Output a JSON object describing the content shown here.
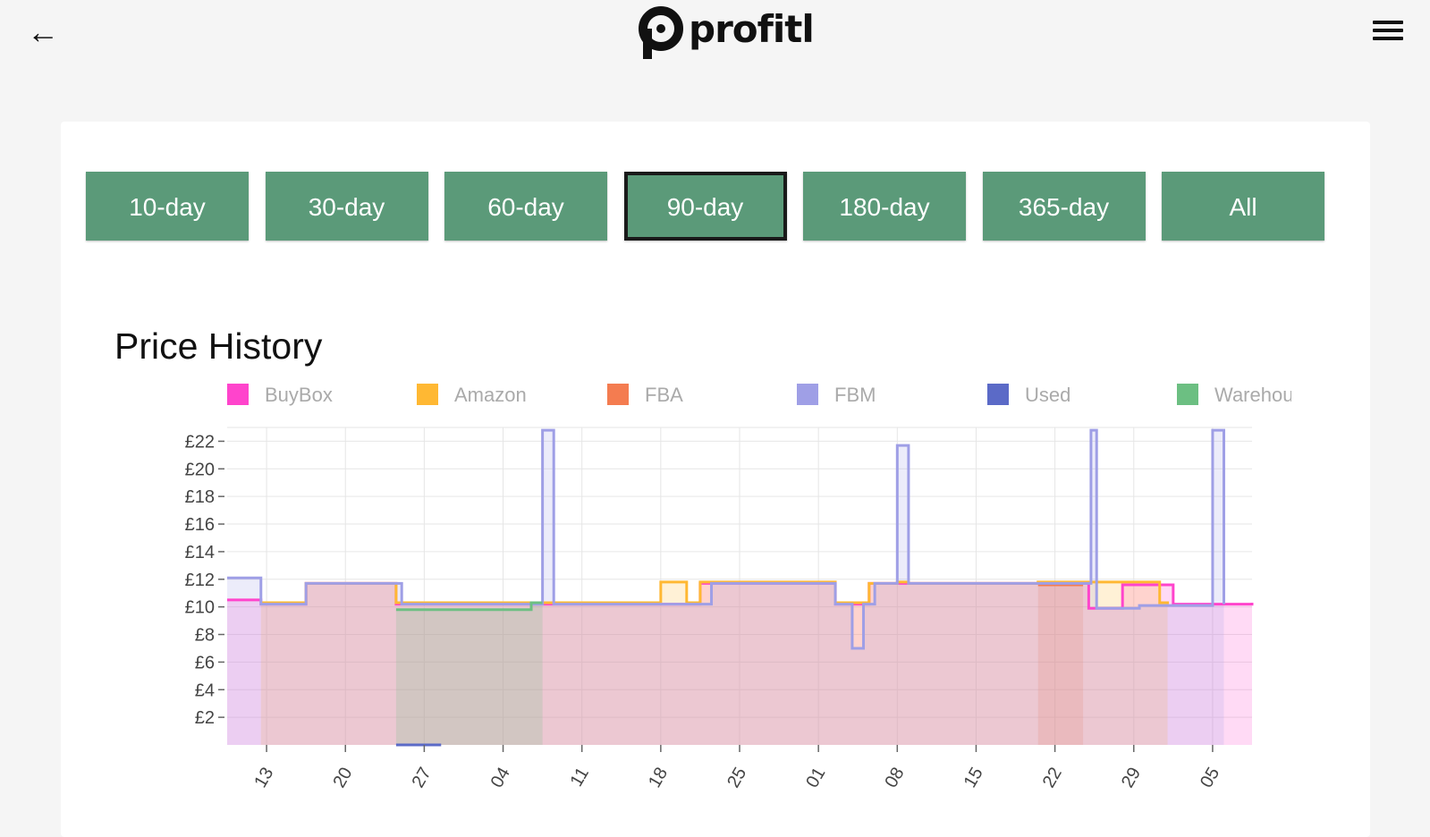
{
  "header": {
    "back_icon": "arrow-left-icon",
    "brand_name": "profitl",
    "menu_icon": "hamburger-menu-icon"
  },
  "range_buttons": [
    {
      "label": "10-day",
      "active": false
    },
    {
      "label": "30-day",
      "active": false
    },
    {
      "label": "60-day",
      "active": false
    },
    {
      "label": "90-day",
      "active": true
    },
    {
      "label": "180-day",
      "active": false
    },
    {
      "label": "365-day",
      "active": false
    },
    {
      "label": "All",
      "active": false
    }
  ],
  "chart_data": {
    "type": "line",
    "title": "Price History",
    "legend_position": "top",
    "grid": true,
    "ylim": [
      0,
      23
    ],
    "xlim": [
      0,
      91
    ],
    "y_ticks": [
      {
        "value": 2,
        "label": "£2"
      },
      {
        "value": 4,
        "label": "£4"
      },
      {
        "value": 6,
        "label": "£6"
      },
      {
        "value": 8,
        "label": "£8"
      },
      {
        "value": 10,
        "label": "£10"
      },
      {
        "value": 12,
        "label": "£12"
      },
      {
        "value": 14,
        "label": "£14"
      },
      {
        "value": 16,
        "label": "£16"
      },
      {
        "value": 18,
        "label": "£18"
      },
      {
        "value": 20,
        "label": "£20"
      },
      {
        "value": 22,
        "label": "£22"
      }
    ],
    "x_ticks": [
      {
        "value": 3.5,
        "label": "13"
      },
      {
        "value": 10.5,
        "label": "20"
      },
      {
        "value": 17.5,
        "label": "27"
      },
      {
        "value": 24.5,
        "label": "04"
      },
      {
        "value": 31.5,
        "label": "11"
      },
      {
        "value": 38.5,
        "label": "18"
      },
      {
        "value": 45.5,
        "label": "25"
      },
      {
        "value": 52.5,
        "label": "01"
      },
      {
        "value": 59.5,
        "label": "08"
      },
      {
        "value": 66.5,
        "label": "15"
      },
      {
        "value": 73.5,
        "label": "22"
      },
      {
        "value": 80.5,
        "label": "29"
      },
      {
        "value": 87.5,
        "label": "05"
      }
    ],
    "series": [
      {
        "name": "BuyBox",
        "color": "#ff44cc",
        "steps": [
          [
            0,
            10.5
          ],
          [
            3,
            10.2
          ],
          [
            7,
            11.7
          ],
          [
            15,
            10.2
          ],
          [
            35.5,
            10.2
          ],
          [
            39.5,
            10.2
          ],
          [
            42,
            11.7
          ],
          [
            54,
            10.2
          ],
          [
            57,
            11.7
          ],
          [
            74,
            11.7
          ],
          [
            76.5,
            9.9
          ],
          [
            79.5,
            11.6
          ],
          [
            84,
            10.2
          ],
          [
            91,
            10.3
          ]
        ],
        "end": 91
      },
      {
        "name": "Amazon",
        "color": "#ffb833",
        "steps": [
          [
            3,
            10.3
          ],
          [
            7,
            11.7
          ],
          [
            15,
            10.3
          ],
          [
            38.5,
            11.8
          ],
          [
            40.8,
            10.3
          ],
          [
            42,
            11.8
          ],
          [
            54,
            10.3
          ],
          [
            56.5,
            10.3
          ],
          [
            57,
            11.7
          ],
          [
            59.5,
            11.8
          ],
          [
            60.5,
            11.7
          ],
          [
            72,
            11.8
          ],
          [
            82.8,
            10.3
          ],
          [
            83.5,
            10.2
          ]
        ],
        "end": 83.5
      },
      {
        "name": "FBA",
        "color": "#f47c50",
        "steps": [
          [
            72,
            11.6
          ],
          [
            76,
            11.6
          ]
        ],
        "end": 76
      },
      {
        "name": "FBM",
        "color": "#9f9fe6",
        "steps": [
          [
            0,
            12.1
          ],
          [
            3,
            10.2
          ],
          [
            7,
            11.7
          ],
          [
            15.5,
            10.2
          ],
          [
            28,
            22.8
          ],
          [
            29,
            10.2
          ],
          [
            43,
            11.7
          ],
          [
            54,
            10.2
          ],
          [
            55.5,
            7
          ],
          [
            56.5,
            10.2
          ],
          [
            57.5,
            11.7
          ],
          [
            59.5,
            21.7
          ],
          [
            60.5,
            11.7
          ],
          [
            76.7,
            22.8
          ],
          [
            77.2,
            9.9
          ],
          [
            81,
            10.1
          ],
          [
            87.5,
            22.8
          ],
          [
            88.5,
            10.2
          ]
        ],
        "end": 88.5
      },
      {
        "name": "Used",
        "color": "#5b6ac7",
        "steps": [
          [
            15,
            0
          ],
          [
            19,
            0
          ]
        ],
        "end": 19
      },
      {
        "name": "Warehouse",
        "color": "#6cbf82",
        "steps": [
          [
            15,
            9.8
          ],
          [
            19,
            9.8
          ],
          [
            27,
            10.3
          ],
          [
            28,
            10.3
          ]
        ],
        "end": 28
      }
    ]
  }
}
